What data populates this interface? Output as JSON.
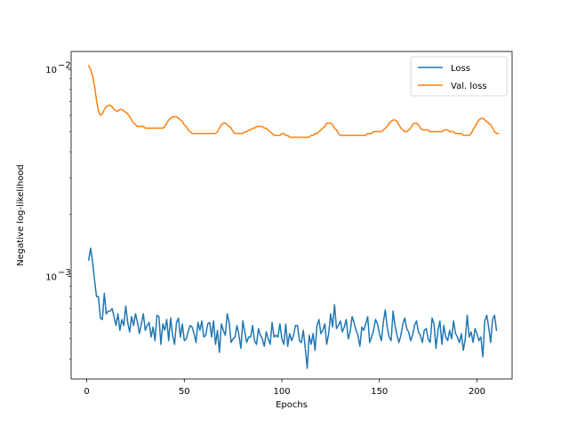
{
  "chart_data": {
    "type": "line",
    "xlabel": "Epochs",
    "ylabel": "Negative log-likelihood",
    "yscale": "log",
    "xlim": [
      -8,
      218
    ],
    "ylim": [
      0.00032,
      0.0122
    ],
    "x_ticks": [
      0,
      50,
      100,
      150,
      200
    ],
    "x_tick_labels": [
      "0",
      "50",
      "100",
      "150",
      "200"
    ],
    "y_ticks": [
      0.001,
      0.01
    ],
    "y_tick_labels": [
      {
        "base": "10",
        "exp": "−3"
      },
      {
        "base": "10",
        "exp": "−2"
      }
    ],
    "legend": {
      "position": "top-right"
    },
    "series": [
      {
        "name": "Loss",
        "color": "#1f77b4",
        "x_start": 1,
        "values": [
          0.0012,
          0.00137,
          0.00118,
          0.00096,
          0.0008,
          0.0008,
          0.00063,
          0.00062,
          0.00083,
          0.00066,
          0.00068,
          0.00068,
          0.0007,
          0.00064,
          0.00058,
          0.00066,
          0.00055,
          0.00062,
          0.00058,
          0.00072,
          0.0006,
          0.00054,
          0.00064,
          0.00058,
          0.00066,
          0.0006,
          0.00053,
          0.00059,
          0.00066,
          0.00055,
          0.00058,
          0.0006,
          0.00051,
          0.00057,
          0.00049,
          0.00065,
          0.00064,
          0.00047,
          0.00059,
          0.00055,
          0.00062,
          0.00049,
          0.00063,
          0.00052,
          0.00047,
          0.0006,
          0.00063,
          0.00051,
          0.00059,
          0.00049,
          0.0005,
          0.00054,
          0.00058,
          0.00057,
          0.00053,
          0.00048,
          0.0006,
          0.00055,
          0.00061,
          0.00051,
          0.00052,
          0.00059,
          0.0006,
          0.00051,
          0.00061,
          0.00047,
          0.00055,
          0.00043,
          0.00059,
          0.00055,
          0.00052,
          0.00066,
          0.0006,
          0.00048,
          0.0005,
          0.00051,
          0.00058,
          0.00052,
          0.00045,
          0.00061,
          0.00054,
          0.00048,
          0.00051,
          0.00051,
          0.00058,
          0.00049,
          0.00047,
          0.00056,
          0.00052,
          0.0005,
          0.00046,
          0.00054,
          0.0005,
          0.00047,
          0.0006,
          0.00051,
          0.00052,
          0.00051,
          0.00059,
          0.0005,
          0.00047,
          0.00059,
          0.00046,
          0.00053,
          0.00049,
          0.00052,
          0.00058,
          0.00058,
          0.00049,
          0.00048,
          0.00055,
          0.00045,
          0.00036,
          0.00052,
          0.00047,
          0.00053,
          0.00044,
          0.00058,
          0.00062,
          0.00053,
          0.00055,
          0.00059,
          0.00047,
          0.00053,
          0.00066,
          0.00057,
          0.00073,
          0.00056,
          0.00058,
          0.00061,
          0.00054,
          0.00057,
          0.00062,
          0.0005,
          0.00054,
          0.00064,
          0.0006,
          0.00055,
          0.00052,
          0.00046,
          0.00057,
          0.00055,
          0.00059,
          0.00064,
          0.00048,
          0.00051,
          0.00055,
          0.00062,
          0.00059,
          0.00053,
          0.00049,
          0.0006,
          0.00069,
          0.00057,
          0.00051,
          0.00049,
          0.00068,
          0.00058,
          0.00052,
          0.00048,
          0.00052,
          0.00059,
          0.00063,
          0.00056,
          0.00054,
          0.00049,
          0.00052,
          0.00058,
          0.00061,
          0.00054,
          0.00052,
          0.00048,
          0.00055,
          0.00056,
          0.0005,
          0.00048,
          0.00063,
          0.00059,
          0.00045,
          0.00055,
          0.00061,
          0.00047,
          0.00058,
          0.00051,
          0.00049,
          0.00055,
          0.0005,
          0.00061,
          0.00053,
          0.00051,
          0.00048,
          0.00053,
          0.00044,
          0.0005,
          0.00065,
          0.00051,
          0.00054,
          0.00048,
          0.00056,
          0.00053,
          0.00049,
          0.00051,
          0.00041,
          0.00061,
          0.00065,
          0.00057,
          0.00048,
          0.00062,
          0.00065,
          0.00055
        ]
      },
      {
        "name": "Val. loss",
        "color": "#ff7f0e",
        "x_start": 1,
        "values": [
          0.0104,
          0.01,
          0.0093,
          0.0083,
          0.0071,
          0.0063,
          0.006,
          0.0061,
          0.0064,
          0.0066,
          0.0067,
          0.0067,
          0.0066,
          0.0064,
          0.0063,
          0.0063,
          0.0064,
          0.0064,
          0.0063,
          0.0062,
          0.0061,
          0.0059,
          0.0057,
          0.0055,
          0.0054,
          0.0053,
          0.0053,
          0.0053,
          0.0053,
          0.0052,
          0.0052,
          0.0052,
          0.0052,
          0.0052,
          0.0052,
          0.0052,
          0.0052,
          0.0052,
          0.0052,
          0.0053,
          0.0055,
          0.0057,
          0.0058,
          0.0059,
          0.0059,
          0.0059,
          0.0058,
          0.0057,
          0.0056,
          0.0054,
          0.0053,
          0.0051,
          0.005,
          0.0049,
          0.0049,
          0.0049,
          0.0049,
          0.0049,
          0.0049,
          0.0049,
          0.0049,
          0.0049,
          0.0049,
          0.0049,
          0.0049,
          0.0049,
          0.005,
          0.0052,
          0.0054,
          0.0055,
          0.0055,
          0.0054,
          0.0053,
          0.0052,
          0.005,
          0.0049,
          0.0049,
          0.0049,
          0.0049,
          0.0049,
          0.005,
          0.005,
          0.0051,
          0.0051,
          0.0052,
          0.0052,
          0.0053,
          0.0053,
          0.0053,
          0.0053,
          0.0052,
          0.0052,
          0.0051,
          0.005,
          0.0049,
          0.0048,
          0.0048,
          0.0048,
          0.0048,
          0.0049,
          0.0049,
          0.0048,
          0.0048,
          0.0047,
          0.0047,
          0.0047,
          0.0047,
          0.0047,
          0.0047,
          0.0047,
          0.0047,
          0.0047,
          0.0047,
          0.0047,
          0.0048,
          0.0048,
          0.0049,
          0.0049,
          0.005,
          0.0051,
          0.0052,
          0.0053,
          0.0055,
          0.0055,
          0.0055,
          0.0054,
          0.0052,
          0.0051,
          0.0049,
          0.0048,
          0.0048,
          0.0048,
          0.0048,
          0.0048,
          0.0048,
          0.0048,
          0.0048,
          0.0048,
          0.0048,
          0.0048,
          0.0048,
          0.0048,
          0.0048,
          0.0049,
          0.0049,
          0.0049,
          0.005,
          0.005,
          0.005,
          0.005,
          0.005,
          0.0051,
          0.0052,
          0.0053,
          0.0055,
          0.0056,
          0.0057,
          0.0057,
          0.0056,
          0.0054,
          0.0052,
          0.0051,
          0.005,
          0.005,
          0.0051,
          0.0052,
          0.0054,
          0.0055,
          0.0055,
          0.0054,
          0.0052,
          0.0051,
          0.0051,
          0.0051,
          0.0051,
          0.005,
          0.005,
          0.005,
          0.005,
          0.005,
          0.005,
          0.005,
          0.0051,
          0.0051,
          0.0051,
          0.005,
          0.005,
          0.005,
          0.0049,
          0.0049,
          0.0049,
          0.0049,
          0.0048,
          0.0048,
          0.0048,
          0.0048,
          0.0049,
          0.0051,
          0.0053,
          0.0055,
          0.0057,
          0.0058,
          0.0058,
          0.0057,
          0.0056,
          0.0055,
          0.0054,
          0.0052,
          0.005,
          0.0049,
          0.0049
        ]
      }
    ]
  }
}
